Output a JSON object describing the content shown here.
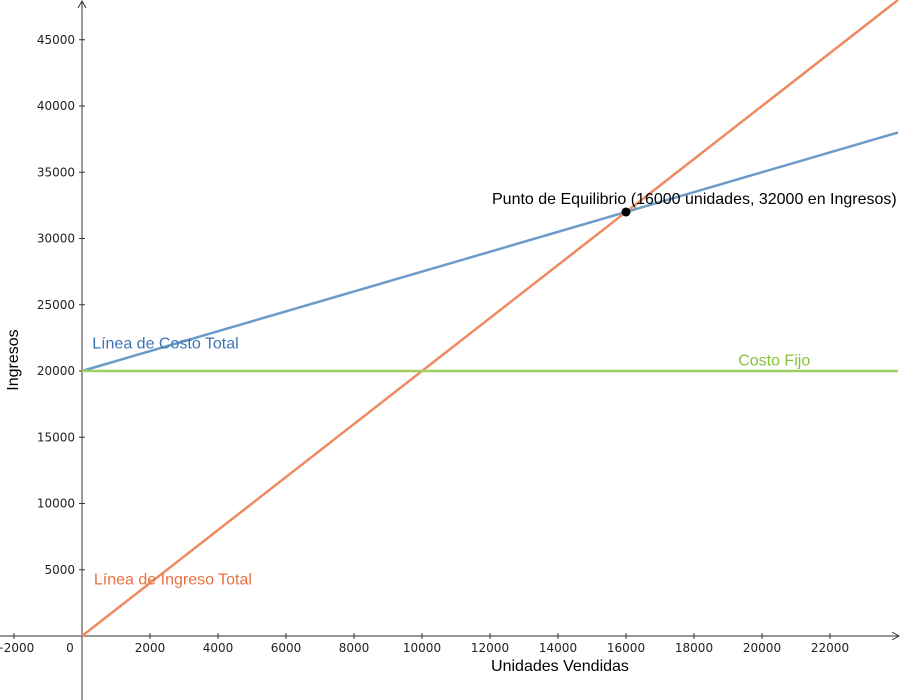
{
  "chart_data": {
    "type": "line",
    "xlabel": "Unidades Vendidas",
    "ylabel": "Ingresos",
    "xlim": [
      -2400,
      24000
    ],
    "ylim": [
      -4700,
      47800
    ],
    "x_ticks": [
      -2000,
      0,
      2000,
      4000,
      6000,
      8000,
      10000,
      12000,
      14000,
      16000,
      18000,
      20000,
      22000
    ],
    "y_ticks": [
      5000,
      10000,
      15000,
      20000,
      25000,
      30000,
      35000,
      40000,
      45000
    ],
    "grid": false,
    "series": [
      {
        "name": "Línea de Costo Total",
        "color": "#6b9bc9",
        "label_color": "#3d75b3",
        "x": [
          0,
          24000
        ],
        "y": [
          20000,
          38000
        ]
      },
      {
        "name": "Línea de Ingreso Total",
        "color": "#ee8a5f",
        "label_color": "#e8713f",
        "x": [
          0,
          24000
        ],
        "y": [
          0,
          48000
        ]
      },
      {
        "name": "Costo Fijo",
        "color": "#9fce62",
        "label_color": "#87c03d",
        "x": [
          0,
          24000
        ],
        "y": [
          20000,
          20000
        ]
      }
    ],
    "annotations": [
      {
        "text": "Punto de Equilibrio (16000 unidades, 32000 en Ingresos)",
        "x": 16000,
        "y": 32000,
        "color": "#000000"
      }
    ],
    "series_labels": [
      {
        "text": "Línea de Costo Total",
        "x": 300,
        "y": 21700
      },
      {
        "text": "Línea de Ingreso Total",
        "x": 350,
        "y": 3900
      },
      {
        "text": "Costo Fijo",
        "x": 19300,
        "y": 20400
      }
    ]
  }
}
